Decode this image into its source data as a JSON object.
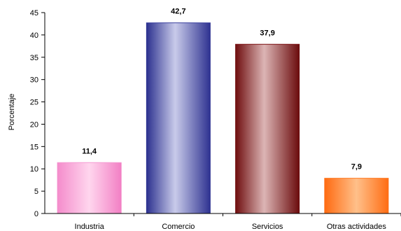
{
  "chart_data": {
    "type": "bar",
    "title": "",
    "xlabel": "",
    "ylabel": "Porcentaje",
    "ylim": [
      0,
      45
    ],
    "yticks": [
      0,
      5,
      10,
      15,
      20,
      25,
      30,
      35,
      40,
      45
    ],
    "categories": [
      "Industria",
      "Comercio",
      "Servicios",
      "Otras actividades"
    ],
    "values": [
      11.4,
      42.7,
      37.9,
      7.9
    ],
    "data_labels": [
      "11,4",
      "42,7",
      "37,9",
      "7,9"
    ],
    "grid": false,
    "legend": "none",
    "colors": [
      "#f59ad2",
      "#3a3f9e",
      "#7a0f10",
      "#ff7a20"
    ]
  }
}
